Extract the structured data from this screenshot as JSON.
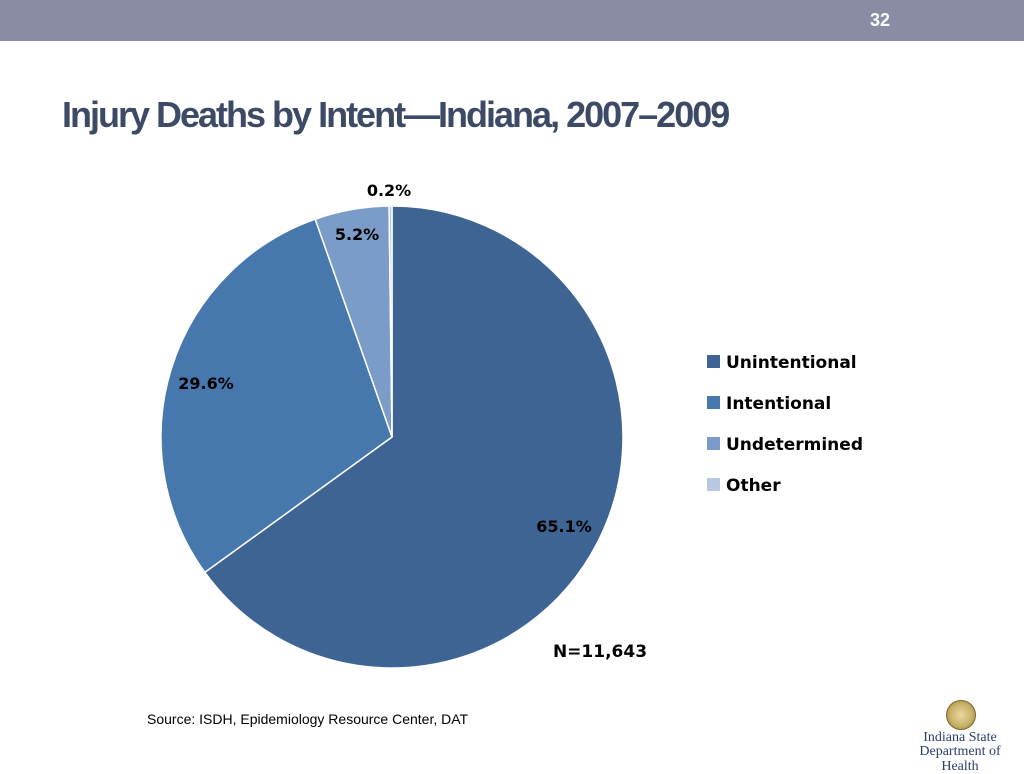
{
  "slide": {
    "number": "32",
    "title": "Injury Deaths by Intent—Indiana, 2007–2009",
    "source": "Source: ISDH, Epidemiology Resource Center, DAT"
  },
  "logo": {
    "line1": "Indiana State",
    "line2": "Department of Health"
  },
  "chart_data": {
    "type": "pie",
    "title": "",
    "categories": [
      "Unintentional",
      "Intentional",
      "Undetermined",
      "Other"
    ],
    "values": [
      65.1,
      29.6,
      5.2,
      0.2
    ],
    "data_labels": [
      "65.1%",
      "29.6%",
      "5.2%",
      "0.2%"
    ],
    "colors": [
      "#3e6494",
      "#4677ad",
      "#7b9cc8",
      "#b6c8e2"
    ],
    "annotation": "N=11,643",
    "legend_position": "right"
  }
}
